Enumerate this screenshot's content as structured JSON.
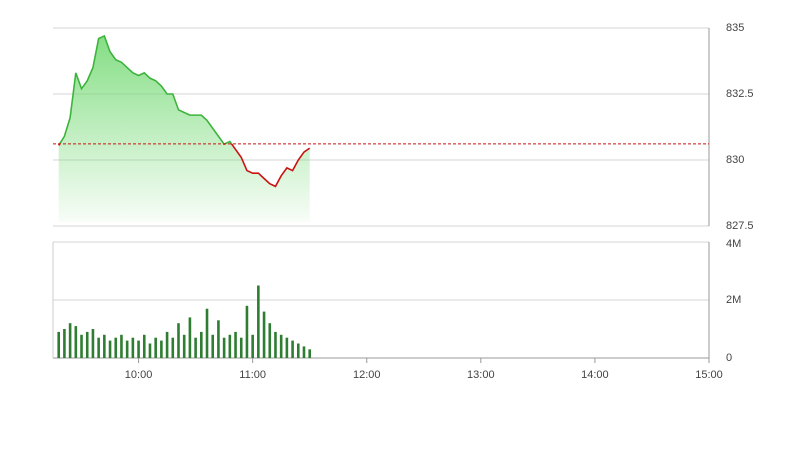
{
  "chart_data": [
    {
      "type": "area",
      "x": [
        558,
        561,
        564,
        567,
        570,
        573,
        576,
        579,
        582,
        585,
        588,
        591,
        594,
        597,
        600,
        603,
        606,
        609,
        612,
        615,
        618,
        621,
        624,
        627,
        630,
        633,
        636,
        639,
        642,
        645,
        648,
        651,
        654,
        657,
        660,
        663,
        666,
        669,
        672,
        675,
        678,
        681,
        684,
        687,
        690
      ],
      "values": [
        830.55,
        830.9,
        831.6,
        833.3,
        832.7,
        833.0,
        833.5,
        834.6,
        834.7,
        834.1,
        833.8,
        833.7,
        833.5,
        833.3,
        833.2,
        833.3,
        833.1,
        833.0,
        832.8,
        832.5,
        832.5,
        831.9,
        831.8,
        831.7,
        831.7,
        831.7,
        831.5,
        831.2,
        830.9,
        830.6,
        830.7,
        830.4,
        830.1,
        829.6,
        829.5,
        829.5,
        829.3,
        829.1,
        829.0,
        829.4,
        829.7,
        829.6,
        830.0,
        830.3,
        830.45
      ],
      "reference": 830.61,
      "color_up": "#3cb43c",
      "color_down": "#cc1111",
      "reference_color": "#cc1111",
      "xlim": [
        555,
        900
      ],
      "ylim": [
        827.5,
        835
      ],
      "yticks": [
        835,
        832.5,
        830,
        827.5
      ],
      "grid": true
    },
    {
      "type": "bar",
      "x": [
        558,
        561,
        564,
        567,
        570,
        573,
        576,
        579,
        582,
        585,
        588,
        591,
        594,
        597,
        600,
        603,
        606,
        609,
        612,
        615,
        618,
        621,
        624,
        627,
        630,
        633,
        636,
        639,
        642,
        645,
        648,
        651,
        654,
        657,
        660,
        663,
        666,
        669,
        672,
        675,
        678,
        681,
        684,
        687,
        690
      ],
      "values": [
        900000,
        1000000,
        1200000,
        1100000,
        800000,
        900000,
        1000000,
        700000,
        800000,
        600000,
        700000,
        800000,
        600000,
        700000,
        600000,
        800000,
        500000,
        700000,
        600000,
        900000,
        700000,
        1200000,
        800000,
        1400000,
        700000,
        900000,
        1700000,
        800000,
        1300000,
        700000,
        800000,
        900000,
        700000,
        1800000,
        800000,
        2500000,
        1600000,
        1200000,
        900000,
        800000,
        700000,
        600000,
        500000,
        400000,
        300000
      ],
      "color": "#2e7d32",
      "xlim": [
        555,
        900
      ],
      "ylim": [
        0,
        4000000
      ],
      "yticks": [
        {
          "value": 4000000,
          "label": "4M"
        },
        {
          "value": 2000000,
          "label": "2M"
        },
        0
      ],
      "xticks": [
        {
          "value": 600,
          "label": "10:00"
        },
        {
          "value": 660,
          "label": "11:00"
        },
        {
          "value": 720,
          "label": "12:00"
        },
        {
          "value": 780,
          "label": "13:00"
        },
        {
          "value": 840,
          "label": "14:00"
        },
        {
          "value": 900,
          "label": "15:00"
        }
      ],
      "grid": true
    }
  ]
}
